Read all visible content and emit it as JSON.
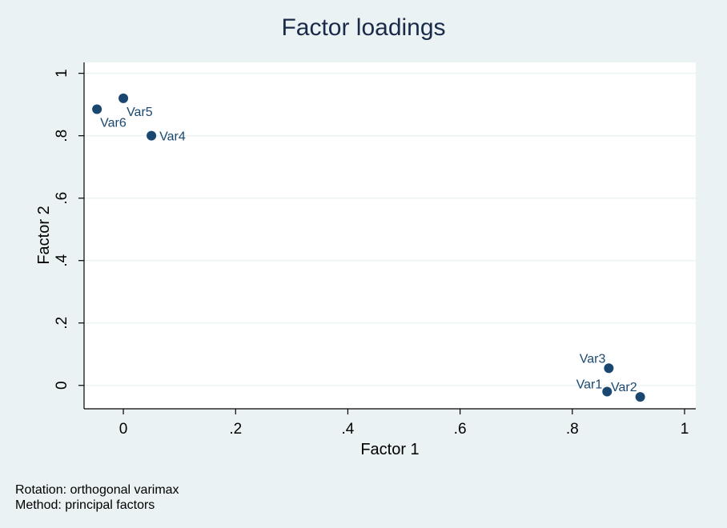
{
  "chart_data": {
    "type": "scatter",
    "title": "Factor loadings",
    "xlabel": "Factor 1",
    "ylabel": "Factor 2",
    "xlim": [
      -0.07,
      1.02
    ],
    "ylim": [
      -0.075,
      1.035
    ],
    "x_ticks": [
      0,
      0.2,
      0.4,
      0.6,
      0.8,
      1
    ],
    "x_tick_labels": [
      "0",
      ".2",
      ".4",
      ".6",
      ".8",
      "1"
    ],
    "y_ticks": [
      0,
      0.2,
      0.4,
      0.6,
      0.8,
      1
    ],
    "y_tick_labels": [
      "0",
      ".2",
      ".4",
      ".6",
      ".8",
      "1"
    ],
    "grid": true,
    "points": [
      {
        "label": "Var1",
        "x": 0.862,
        "y": -0.02,
        "label_pos": "left"
      },
      {
        "label": "Var2",
        "x": 0.921,
        "y": -0.037,
        "label_pos": "upper-left"
      },
      {
        "label": "Var3",
        "x": 0.865,
        "y": 0.055,
        "label_pos": "upper-left"
      },
      {
        "label": "Var4",
        "x": 0.05,
        "y": 0.8,
        "label_pos": "right"
      },
      {
        "label": "Var5",
        "x": 0.0,
        "y": 0.92,
        "label_pos": "lower-right"
      },
      {
        "label": "Var6",
        "x": -0.047,
        "y": 0.885,
        "label_pos": "lower-right"
      }
    ],
    "colors": {
      "marker": "#1a476f",
      "label": "#1a476f",
      "plot_bg": "#ffffff",
      "outer_bg": "#eaf2f3",
      "grid": "#eaf2f3"
    }
  },
  "notes": {
    "rotation": "Rotation: orthogonal varimax",
    "method": "Method: principal factors"
  }
}
